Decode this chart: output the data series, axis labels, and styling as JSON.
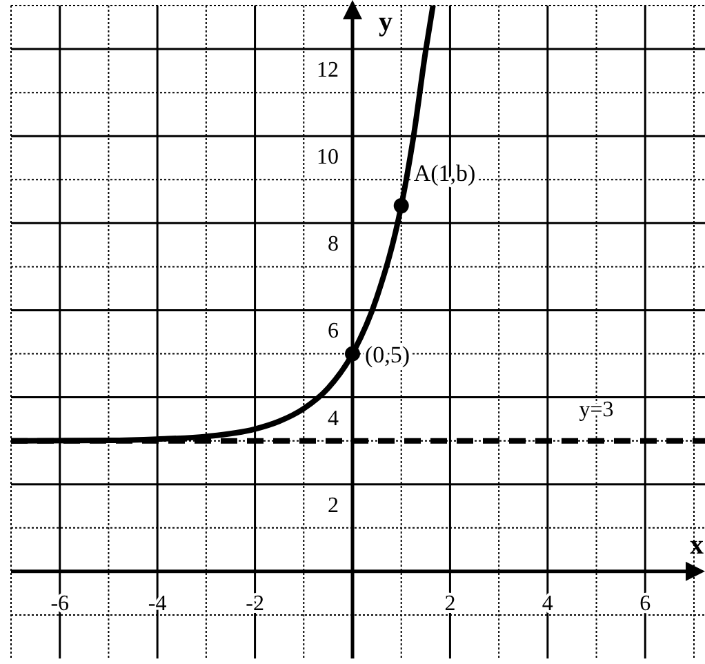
{
  "chart_data": {
    "type": "line",
    "xlabel": "x",
    "ylabel": "y",
    "xlim": [
      -7,
      7
    ],
    "ylim": [
      -2,
      13
    ],
    "xticks": [
      {
        "value": -7,
        "label": null
      },
      -6,
      {
        "value": -5,
        "label": null
      },
      -4,
      {
        "value": -3,
        "label": null
      },
      -2,
      {
        "value": -1,
        "label": null
      },
      {
        "value": 1,
        "label": null
      },
      2,
      {
        "value": 3,
        "label": null
      },
      4,
      {
        "value": 5,
        "label": null
      },
      6,
      {
        "value": 7,
        "label": null
      }
    ],
    "yticks": [
      {
        "value": -1,
        "label": null
      },
      {
        "value": 1,
        "label": null
      },
      2,
      {
        "value": 3,
        "label": null
      },
      4,
      {
        "value": 5,
        "label": null
      },
      6,
      {
        "value": 7,
        "label": null
      },
      8,
      {
        "value": 9,
        "label": null
      },
      10,
      {
        "value": 11,
        "label": null
      },
      12,
      {
        "value": 13,
        "label": null
      }
    ],
    "grid": true,
    "series": [
      {
        "type": "line",
        "color": "#000000",
        "marker": "none",
        "line_style": "solid",
        "x": [
          -7,
          -5,
          -4,
          -3,
          -2,
          -1.5,
          -1,
          -0.5,
          0,
          0.5,
          1,
          1.25,
          1.5,
          1.65
        ],
        "values": [
          3.0,
          3.01,
          3.04,
          3.1,
          3.27,
          3.45,
          3.74,
          4.21,
          5,
          6.3,
          8.4,
          9.98,
          11.96,
          13.0
        ]
      },
      {
        "type": "scatter",
        "color": "#000000",
        "marker": "circle",
        "x": [
          0,
          1
        ],
        "values": [
          5,
          8.4
        ]
      }
    ],
    "ref_lines": [
      {
        "axis": "y",
        "value": 3,
        "label": "y=3",
        "color": "#000000",
        "line_style": "dashed"
      }
    ],
    "annotations": [
      {
        "text": "(0,5)",
        "x": 0,
        "y": 5
      },
      {
        "text": "A(1,b)",
        "x": 1,
        "y": 8.4
      }
    ]
  }
}
